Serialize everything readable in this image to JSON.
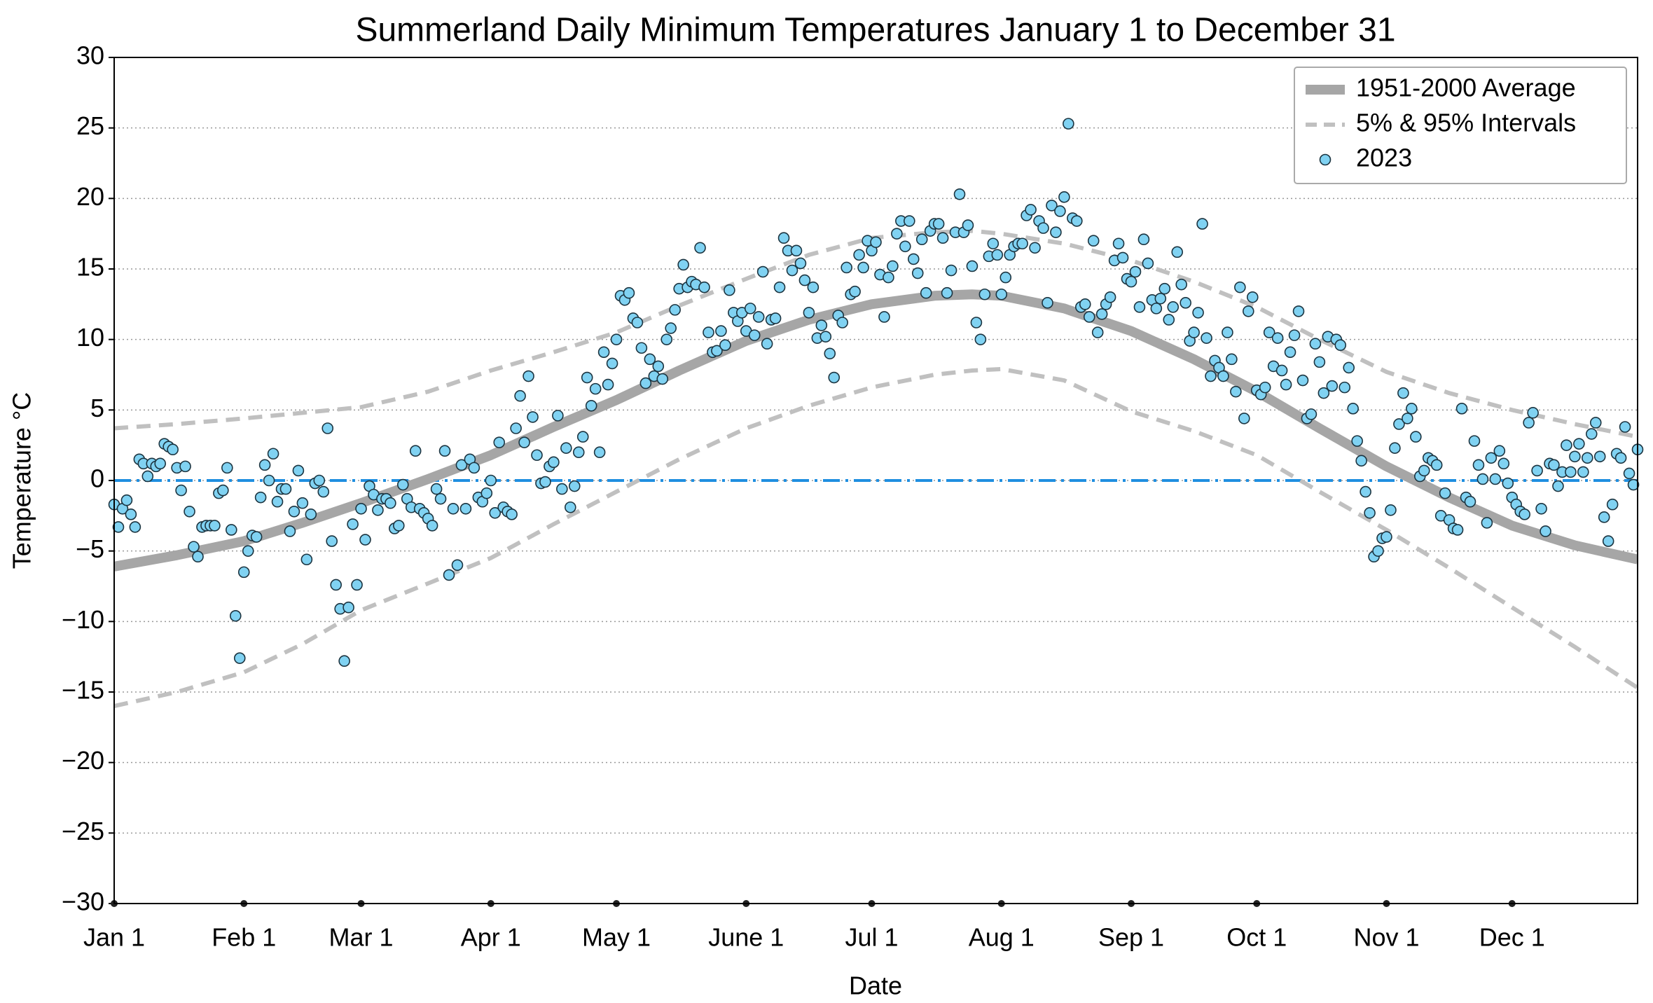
{
  "chart_data": {
    "type": "scatter",
    "title": "Summerland Daily Minimum Temperatures January 1 to December 31",
    "x_label": "Date",
    "y_label": "Temperature °C",
    "xlim": [
      0,
      364
    ],
    "xticks": [
      {
        "value": 0,
        "label": "Jan 1"
      },
      {
        "value": 31,
        "label": "Feb 1"
      },
      {
        "value": 59,
        "label": "Mar 1"
      },
      {
        "value": 90,
        "label": "Apr 1"
      },
      {
        "value": 120,
        "label": "May 1"
      },
      {
        "value": 151,
        "label": "June 1"
      },
      {
        "value": 181,
        "label": "Jul 1"
      },
      {
        "value": 212,
        "label": "Aug 1"
      },
      {
        "value": 243,
        "label": "Sep 1"
      },
      {
        "value": 273,
        "label": "Oct 1"
      },
      {
        "value": 304,
        "label": "Nov 1"
      },
      {
        "value": 334,
        "label": "Dec 1"
      }
    ],
    "ylim": [
      -30,
      30
    ],
    "yticks": [
      {
        "value": -30,
        "label": "−30"
      },
      {
        "value": -25,
        "label": "−25"
      },
      {
        "value": -20,
        "label": "−20"
      },
      {
        "value": -15,
        "label": "−15"
      },
      {
        "value": -10,
        "label": "−10"
      },
      {
        "value": -5,
        "label": "−5"
      },
      0,
      5,
      10,
      15,
      20,
      25,
      30
    ],
    "grid": true,
    "legend": "upper right",
    "zero_line": true,
    "zero_line_color": "#1f8fe0",
    "series": [
      {
        "name": "1951-2000 Average",
        "type": "line",
        "color": "#a6a6a6",
        "x": [
          0,
          15,
          31,
          45,
          59,
          75,
          90,
          105,
          120,
          135,
          151,
          166,
          181,
          196,
          205,
          212,
          227,
          243,
          258,
          273,
          288,
          304,
          319,
          334,
          349,
          364
        ],
        "values": [
          -6.1,
          -5.3,
          -4.3,
          -3.0,
          -1.6,
          0.1,
          1.8,
          3.8,
          5.7,
          7.8,
          9.9,
          11.4,
          12.5,
          13.1,
          13.2,
          13.1,
          12.2,
          10.6,
          8.6,
          6.3,
          3.7,
          1.0,
          -1.2,
          -3.2,
          -4.6,
          -5.6
        ]
      },
      {
        "name": "5% & 95% Intervals",
        "type": "dashed",
        "color": "#c0c0c0",
        "x": [
          0,
          15,
          31,
          45,
          59,
          75,
          90,
          105,
          120,
          135,
          151,
          166,
          181,
          196,
          205,
          212,
          227,
          243,
          258,
          273,
          288,
          304,
          319,
          334,
          349,
          364
        ],
        "upper": [
          3.7,
          4.0,
          4.4,
          4.8,
          5.2,
          6.3,
          7.8,
          9.1,
          10.5,
          12.4,
          14.3,
          16.0,
          17.2,
          17.6,
          17.7,
          17.5,
          16.8,
          15.6,
          14.1,
          12.3,
          10.0,
          7.7,
          6.2,
          5.0,
          4.0,
          3.1
        ],
        "lower": [
          -16,
          -15,
          -13.6,
          -11.6,
          -9.2,
          -7.3,
          -5.5,
          -3.1,
          -0.8,
          1.5,
          3.7,
          5.3,
          6.6,
          7.5,
          7.8,
          7.9,
          7.1,
          4.9,
          3.5,
          1.8,
          -0.8,
          -3.5,
          -6.2,
          -9.0,
          -11.8,
          -14.7
        ]
      },
      {
        "name": "2023",
        "type": "scatter",
        "color": "#80d2f2",
        "edge": "#1c3440",
        "x": [
          0,
          1,
          2,
          3,
          4,
          5,
          6,
          7,
          8,
          9,
          10,
          11,
          12,
          13,
          14,
          15,
          16,
          17,
          18,
          19,
          20,
          21,
          22,
          23,
          24,
          25,
          26,
          27,
          28,
          29,
          30,
          31,
          32,
          33,
          34,
          35,
          36,
          37,
          38,
          39,
          40,
          41,
          42,
          43,
          44,
          45,
          46,
          47,
          48,
          49,
          50,
          51,
          52,
          53,
          54,
          55,
          56,
          57,
          58,
          59,
          60,
          61,
          62,
          63,
          64,
          65,
          66,
          67,
          68,
          69,
          70,
          71,
          72,
          73,
          74,
          75,
          76,
          77,
          78,
          79,
          80,
          81,
          82,
          83,
          84,
          85,
          86,
          87,
          88,
          89,
          90,
          91,
          92,
          93,
          94,
          95,
          96,
          97,
          98,
          99,
          100,
          101,
          102,
          103,
          104,
          105,
          106,
          107,
          108,
          109,
          110,
          111,
          112,
          113,
          114,
          115,
          116,
          117,
          118,
          119,
          120,
          121,
          122,
          123,
          124,
          125,
          126,
          127,
          128,
          129,
          130,
          131,
          132,
          133,
          134,
          135,
          136,
          137,
          138,
          139,
          140,
          141,
          142,
          143,
          144,
          145,
          146,
          147,
          148,
          149,
          150,
          151,
          152,
          153,
          154,
          155,
          156,
          157,
          158,
          159,
          160,
          161,
          162,
          163,
          164,
          165,
          166,
          167,
          168,
          169,
          170,
          171,
          172,
          173,
          174,
          175,
          176,
          177,
          178,
          179,
          180,
          181,
          182,
          183,
          184,
          185,
          186,
          187,
          188,
          189,
          190,
          191,
          192,
          193,
          194,
          195,
          196,
          197,
          198,
          199,
          200,
          201,
          202,
          203,
          204,
          205,
          206,
          207,
          208,
          209,
          210,
          211,
          212,
          213,
          214,
          215,
          216,
          217,
          218,
          219,
          220,
          221,
          222,
          223,
          224,
          225,
          226,
          227,
          228,
          229,
          230,
          231,
          232,
          233,
          234,
          235,
          236,
          237,
          238,
          239,
          240,
          241,
          242,
          243,
          244,
          245,
          246,
          247,
          248,
          249,
          250,
          251,
          252,
          253,
          254,
          255,
          256,
          257,
          258,
          259,
          260,
          261,
          262,
          263,
          264,
          265,
          266,
          267,
          268,
          269,
          270,
          271,
          272,
          273,
          274,
          275,
          276,
          277,
          278,
          279,
          280,
          281,
          282,
          283,
          284,
          285,
          286,
          287,
          288,
          289,
          290,
          291,
          292,
          293,
          294,
          295,
          296,
          297,
          298,
          299,
          300,
          301,
          302,
          303,
          304,
          305,
          306,
          307,
          308,
          309,
          310,
          311,
          312,
          313,
          314,
          315,
          316,
          317,
          318,
          319,
          320,
          321,
          322,
          323,
          324,
          325,
          326,
          327,
          328,
          329,
          330,
          331,
          332,
          333,
          334,
          335,
          336,
          337,
          338,
          339,
          340,
          341,
          342,
          343,
          344,
          345,
          346,
          347,
          348,
          349,
          350,
          351,
          352,
          353,
          354,
          355,
          356,
          357,
          358,
          359,
          360,
          361,
          362,
          363,
          364
        ],
        "values": [
          -1.7,
          -3.3,
          -2,
          -1.4,
          -2.4,
          -3.3,
          1.5,
          1.2,
          0.3,
          1.2,
          1,
          1.2,
          2.6,
          2.4,
          2.2,
          0.9,
          -0.7,
          1,
          -2.2,
          -4.7,
          -5.4,
          -3.3,
          -3.2,
          -3.2,
          -3.2,
          -0.9,
          -0.7,
          0.9,
          -3.5,
          -9.6,
          -12.6,
          -6.5,
          -5,
          -3.9,
          -4,
          -1.2,
          1.1,
          0,
          1.9,
          -1.5,
          -0.6,
          -0.6,
          -3.6,
          -2.2,
          0.7,
          -1.6,
          -5.6,
          -2.4,
          -0.2,
          0,
          -0.8,
          3.7,
          -4.3,
          -7.4,
          -9.1,
          -12.8,
          -9,
          -3.1,
          -7.4,
          -2,
          -4.2,
          -0.4,
          -1,
          -2.1,
          -1.3,
          -1.3,
          -1.6,
          -3.4,
          -3.2,
          -0.3,
          -1.3,
          -1.9,
          2.1,
          -2,
          -2.3,
          -2.7,
          -3.2,
          -0.6,
          -1.3,
          2.1,
          -6.7,
          -2,
          -6,
          1.1,
          -2,
          1.5,
          0.9,
          -1.2,
          -1.5,
          -0.9,
          0,
          -2.3,
          2.7,
          -1.9,
          -2.2,
          -2.4,
          3.7,
          6,
          2.7,
          7.4,
          4.5,
          1.8,
          -0.2,
          -0.1,
          1,
          1.3,
          4.6,
          -0.6,
          2.3,
          -1.9,
          -0.4,
          2,
          3.1,
          7.3,
          5.3,
          6.5,
          2,
          9.1,
          6.8,
          8.3,
          10,
          13.1,
          12.8,
          13.3,
          11.5,
          11.2,
          9.4,
          6.9,
          8.6,
          7.4,
          8.1,
          7.2,
          10,
          10.8,
          12.1,
          13.6,
          15.3,
          13.7,
          14.1,
          13.9,
          16.5,
          13.7,
          10.5,
          9.1,
          9.2,
          10.6,
          9.6,
          13.5,
          11.9,
          11.3,
          11.9,
          10.6,
          12.2,
          10.3,
          11.6,
          14.8,
          9.7,
          11.4,
          11.5,
          13.7,
          17.2,
          16.3,
          14.9,
          16.3,
          15.4,
          14.2,
          11.9,
          13.7,
          10.1,
          11,
          10.2,
          9,
          7.3,
          11.7,
          11.2,
          15.1,
          13.2,
          13.4,
          16,
          15.1,
          17,
          16.3,
          16.9,
          14.6,
          11.6,
          14.4,
          15.2,
          17.5,
          18.4,
          16.6,
          18.4,
          15.7,
          14.7,
          17.1,
          13.3,
          17.7,
          18.2,
          18.2,
          17.2,
          13.3,
          14.9,
          17.6,
          20.3,
          17.6,
          18.1,
          15.2,
          11.2,
          10,
          13.2,
          15.9,
          16.8,
          16,
          13.2,
          14.4,
          16,
          16.6,
          16.8,
          16.8,
          18.8,
          19.2,
          16.5,
          18.4,
          17.9,
          12.6,
          19.5,
          17.6,
          19.1,
          20.1,
          25.3,
          18.6,
          18.4,
          12.3,
          12.5,
          11.6,
          17,
          10.5,
          11.8,
          12.5,
          13,
          15.6,
          16.8,
          15.8,
          14.3,
          14.1,
          14.8,
          12.3,
          17.1,
          15.4,
          12.8,
          12.2,
          12.9,
          13.6,
          11.4,
          12.3,
          16.2,
          13.9,
          12.6,
          9.9,
          10.5,
          11.9,
          18.2,
          10.1,
          7.4,
          8.5,
          8,
          7.4,
          10.5,
          8.6,
          6.3,
          13.7,
          4.4,
          12,
          13,
          6.4,
          6.1,
          6.6,
          10.5,
          8.1,
          10.1,
          7.8,
          6.8,
          9.1,
          10.3,
          12,
          7.1,
          4.4,
          4.7,
          9.7,
          8.4,
          6.2,
          10.2,
          6.7,
          10,
          9.6,
          6.6,
          8,
          5.1,
          2.8,
          1.4,
          -0.8,
          -2.3,
          -5.4,
          -5,
          -4.1,
          -4,
          -2.1,
          2.3,
          4,
          6.2,
          4.4,
          5.1,
          3.1,
          0.3,
          0.7,
          1.6,
          1.4,
          1.1,
          -2.5,
          -0.9,
          -2.8,
          -3.4,
          -3.5,
          5.1,
          -1.2,
          -1.5,
          2.8,
          1.1,
          0.1,
          -3,
          1.6,
          0.1,
          2.1,
          1.2,
          -0.2,
          -1.2,
          -1.7,
          -2.2,
          -2.4,
          4.1,
          4.8,
          0.7,
          -2,
          -3.6,
          1.2,
          1.1,
          -0.4,
          0.6,
          2.5,
          0.6,
          1.7,
          2.6,
          0.6,
          1.6,
          3.3,
          4.1,
          1.7,
          -2.6,
          -4.3,
          -1.7,
          1.9,
          1.6,
          3.8,
          0.5,
          -0.3,
          2.2
        ]
      }
    ]
  }
}
